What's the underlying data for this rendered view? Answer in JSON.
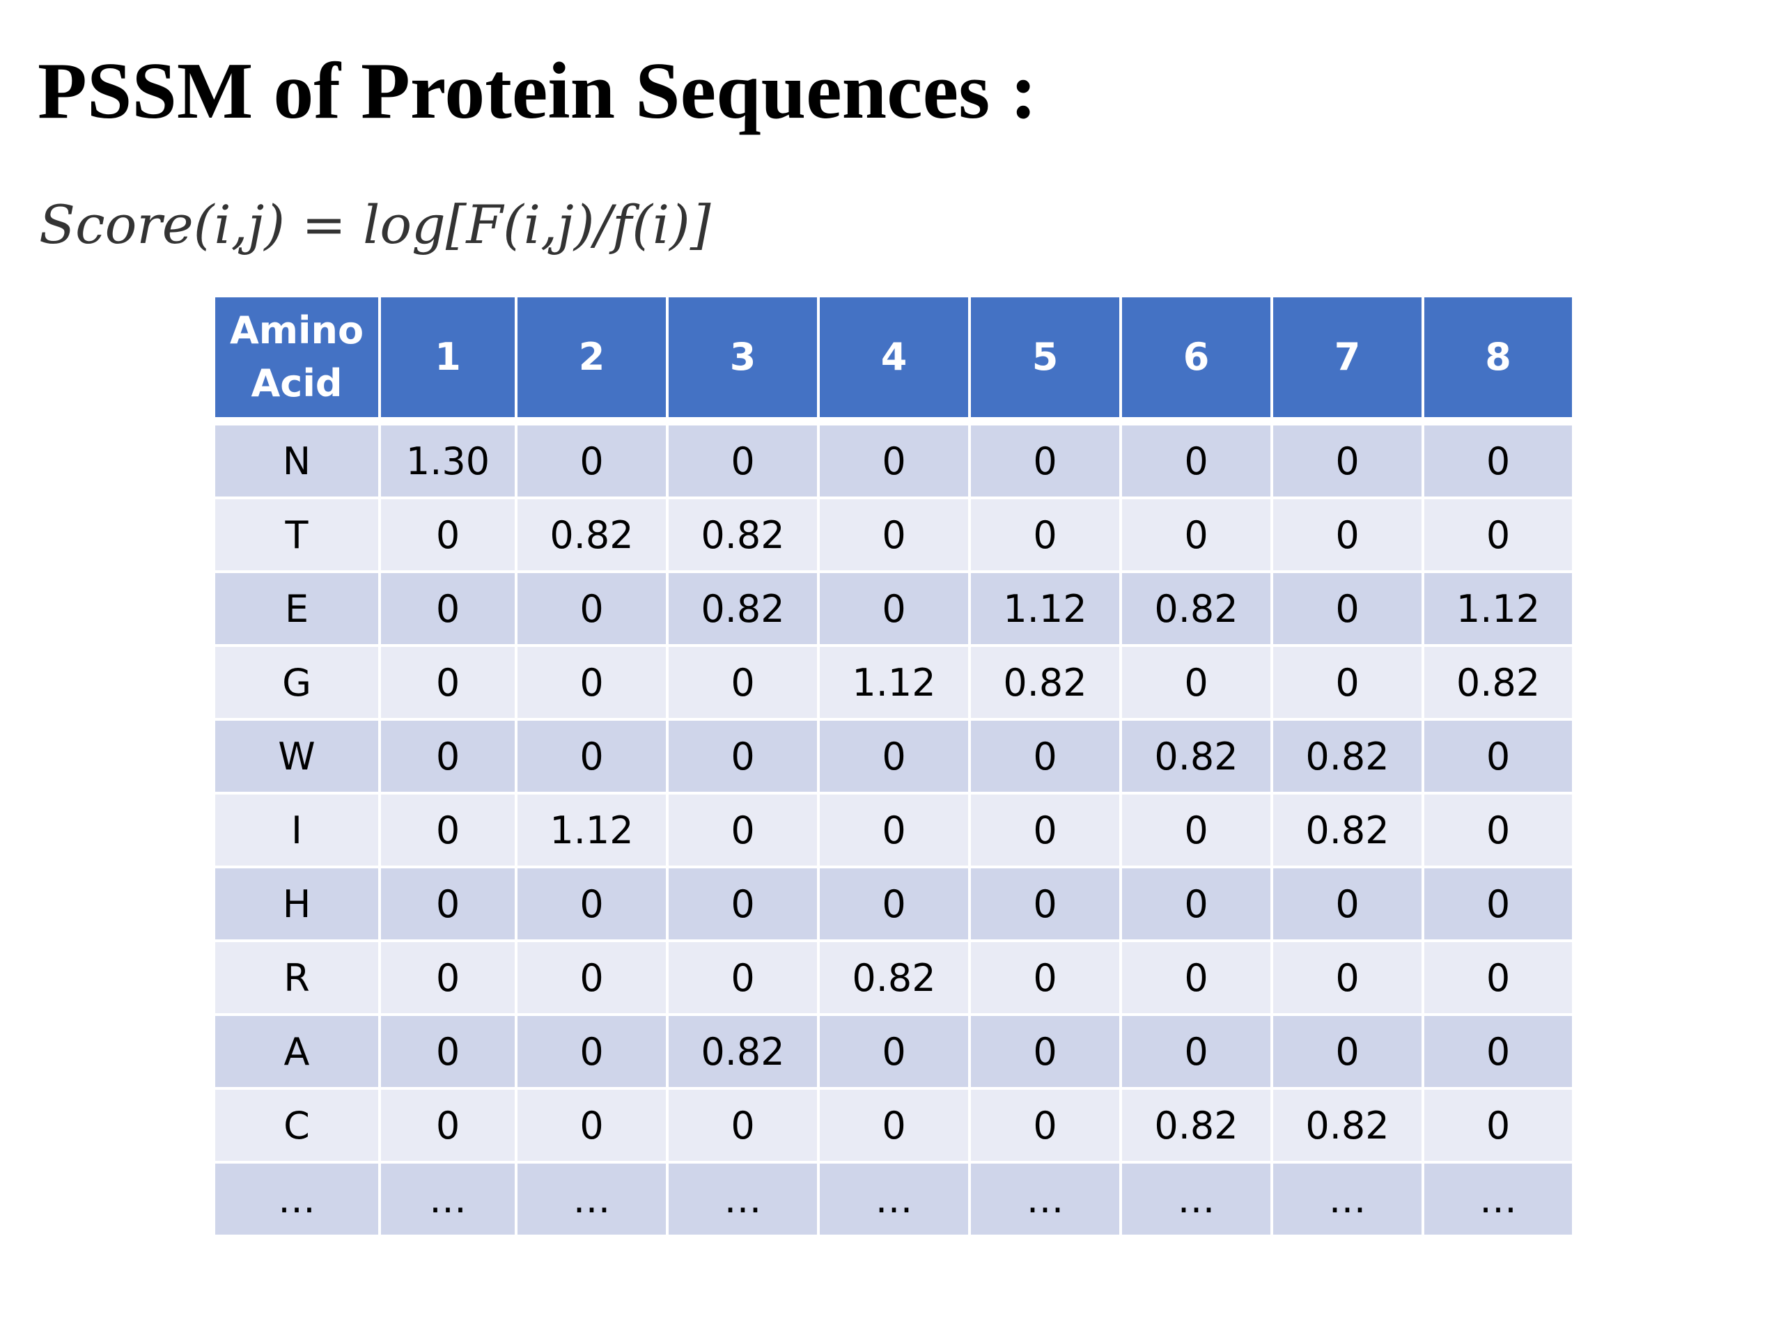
{
  "title": "PSSM of Protein Sequences :",
  "formula": {
    "lhs": "Score(i,j)",
    "equals": "=",
    "rhs": "log[F(i,j)/f(i)]"
  },
  "table": {
    "header_line1": "Amino",
    "header_line2": "Acid",
    "columns": [
      "1",
      "2",
      "3",
      "4",
      "5",
      "6",
      "7",
      "8"
    ],
    "rows": [
      {
        "aa": "N",
        "values": [
          "1.30",
          "0",
          "0",
          "0",
          "0",
          "0",
          "0",
          "0"
        ]
      },
      {
        "aa": "T",
        "values": [
          "0",
          "0.82",
          "0.82",
          "0",
          "0",
          "0",
          "0",
          "0"
        ]
      },
      {
        "aa": "E",
        "values": [
          "0",
          "0",
          "0.82",
          "0",
          "1.12",
          "0.82",
          "0",
          "1.12"
        ]
      },
      {
        "aa": "G",
        "values": [
          "0",
          "0",
          "0",
          "1.12",
          "0.82",
          "0",
          "0",
          "0.82"
        ]
      },
      {
        "aa": "W",
        "values": [
          "0",
          "0",
          "0",
          "0",
          "0",
          "0.82",
          "0.82",
          "0"
        ]
      },
      {
        "aa": "I",
        "values": [
          "0",
          "1.12",
          "0",
          "0",
          "0",
          "0",
          "0.82",
          "0"
        ]
      },
      {
        "aa": "H",
        "values": [
          "0",
          "0",
          "0",
          "0",
          "0",
          "0",
          "0",
          "0"
        ]
      },
      {
        "aa": "R",
        "values": [
          "0",
          "0",
          "0",
          "0.82",
          "0",
          "0",
          "0",
          "0"
        ]
      },
      {
        "aa": "A",
        "values": [
          "0",
          "0",
          "0.82",
          "0",
          "0",
          "0",
          "0",
          "0"
        ]
      },
      {
        "aa": "C",
        "values": [
          "0",
          "0",
          "0",
          "0",
          "0",
          "0.82",
          "0.82",
          "0"
        ]
      },
      {
        "aa": "…",
        "values": [
          "…",
          "…",
          "…",
          "…",
          "…",
          "…",
          "…",
          "…"
        ]
      }
    ]
  },
  "colors": {
    "header_bg": "#4472c4",
    "row_dark": "#cfd5ea",
    "row_light": "#e9ebf5"
  }
}
